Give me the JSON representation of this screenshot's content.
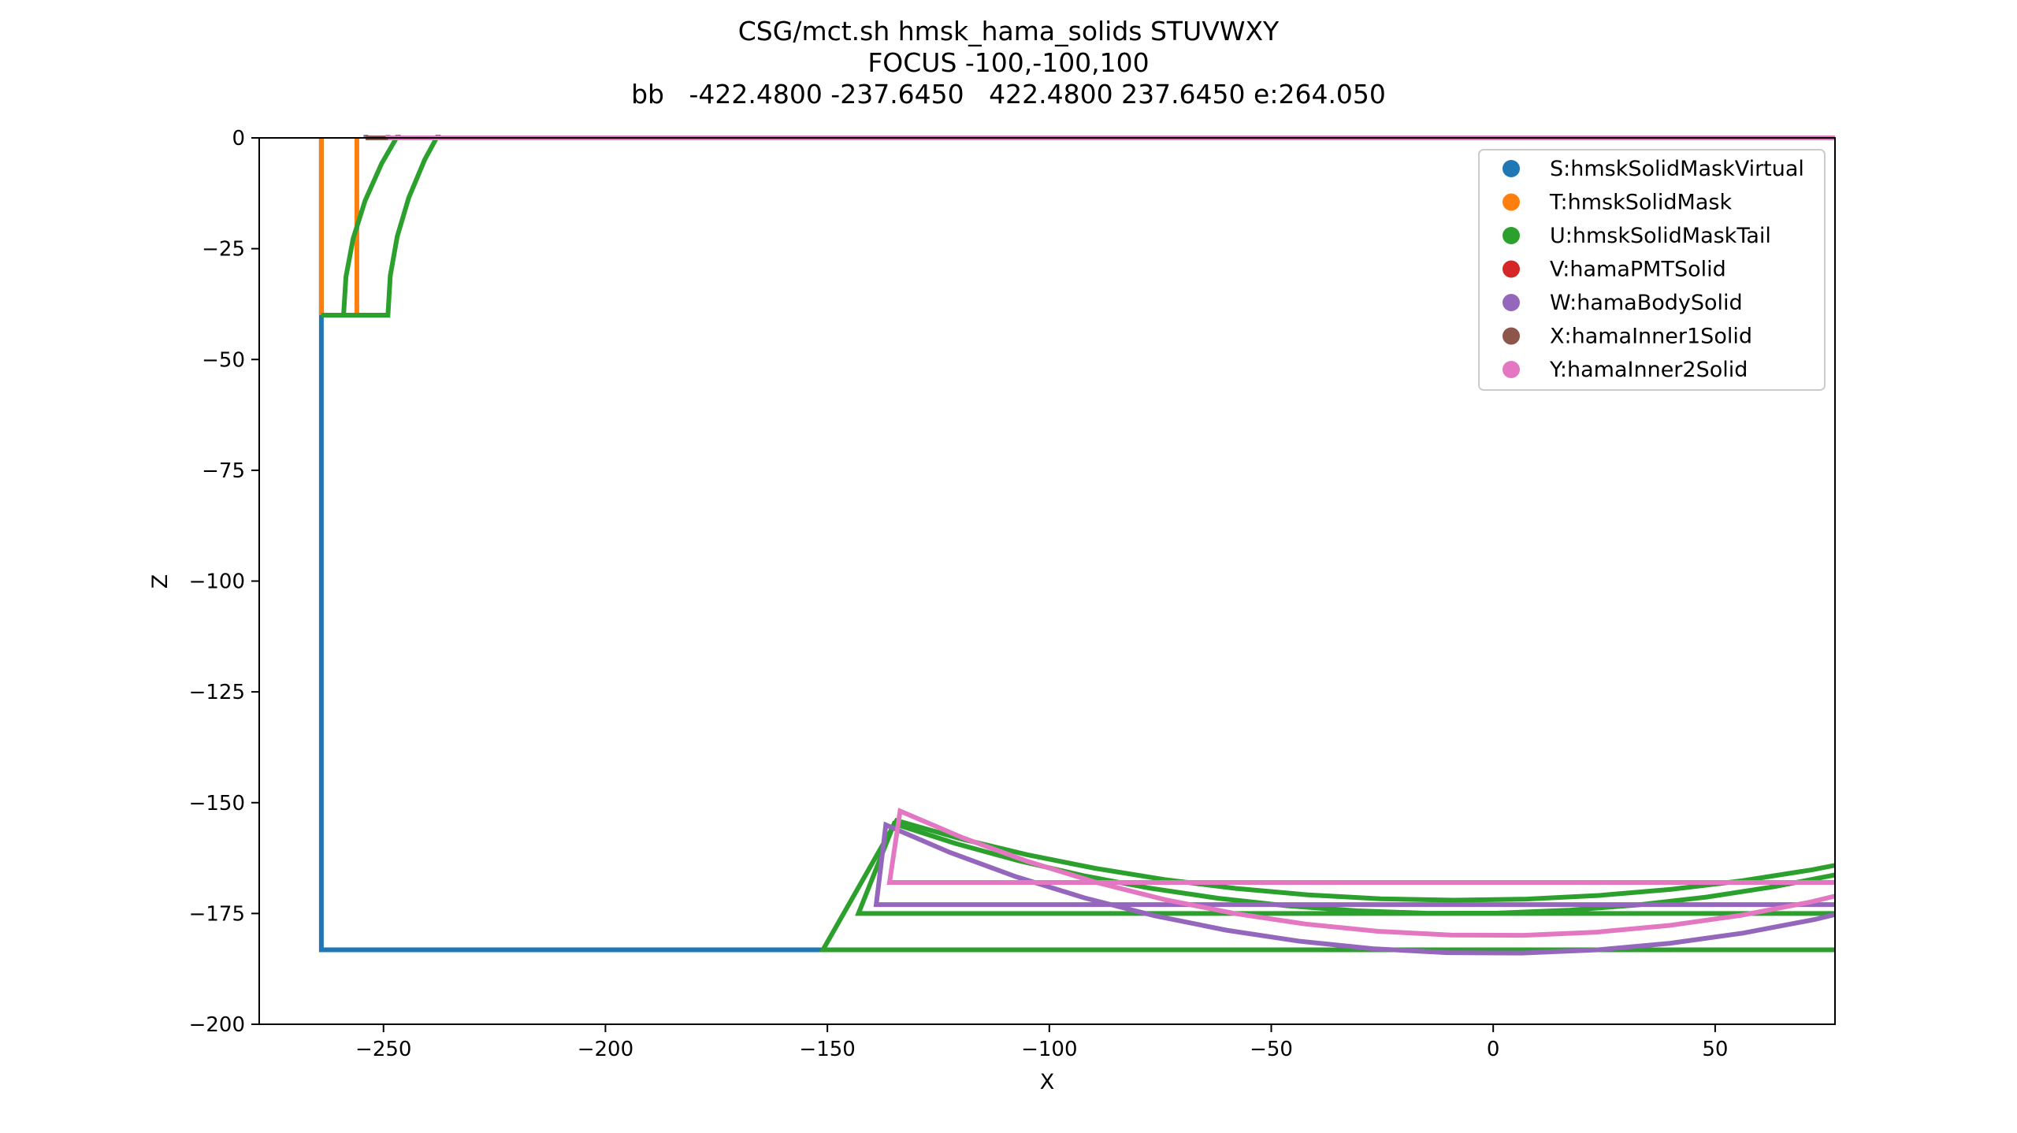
{
  "chart_data": {
    "type": "line",
    "title": [
      "CSG/mct.sh hmsk_hama_solids STUVWXY",
      "FOCUS -100,-100,100",
      "bb   -422.4800 -237.6450   422.4800 237.6450 e:264.050"
    ],
    "xlabel": "X",
    "ylabel": "Z",
    "xlim": [
      -278,
      77
    ],
    "ylim": [
      -200,
      0
    ],
    "xticks": [
      -250,
      -200,
      -150,
      -100,
      -50,
      0,
      50
    ],
    "yticks": [
      0,
      -25,
      -50,
      -75,
      -100,
      -125,
      -150,
      -175,
      -200
    ],
    "xtick_labels": [
      "−250",
      "−200",
      "−150",
      "−100",
      "−50",
      "0",
      "50"
    ],
    "ytick_labels": [
      "0",
      "−25",
      "−50",
      "−75",
      "−100",
      "−125",
      "−150",
      "−175",
      "−200"
    ],
    "grid": false,
    "legend_position": "top-right",
    "series": [
      {
        "name": "S:hmskSolidMaskVirtual",
        "color": "#1f77b4",
        "paths": [
          [
            [
              -264,
              0
            ],
            [
              -264,
              -183.2
            ],
            [
              77,
              -183.2
            ]
          ]
        ]
      },
      {
        "name": "T:hmskSolidMask",
        "color": "#ff7f0e",
        "paths": [
          [
            [
              -264,
              0
            ],
            [
              -264,
              -40
            ]
          ],
          [
            [
              -256,
              0
            ],
            [
              -256,
              -40
            ]
          ]
        ]
      },
      {
        "name": "U:hmskSolidMaskTail",
        "color": "#2ca02c",
        "paths": [
          [
            [
              -264,
              -40
            ],
            [
              -249,
              -40
            ],
            {
              "arc": true,
              "center": [
                -8,
                -40
              ],
              "radii": [
                241,
                135
              ],
              "from": [
                -249,
                -40
              ],
              "to": [
                -143,
                -162
              ]
            },
            [
              -143,
              -175
            ],
            [
              77,
              -175
            ]
          ],
          [
            [
              -264,
              -40
            ],
            [
              -259,
              -40
            ],
            {
              "arc": true,
              "center": [
                -8,
                -40
              ],
              "radii": [
                251,
                132
              ],
              "from": [
                -259,
                -40
              ],
              "to": [
                -151,
                -169
              ]
            },
            [
              -151,
              -183.2
            ],
            [
              77,
              -183.2
            ]
          ]
        ]
      },
      {
        "name": "V:hamaPMTSolid",
        "color": "#d62728",
        "paths": [
          [
            [
              -254,
              0
            ],
            [
              77,
              0
            ]
          ]
        ]
      },
      {
        "name": "W:hamaBodySolid",
        "color": "#9467bd",
        "paths": [
          [
            [
              -254,
              0
            ],
            {
              "arc": true,
              "center": [
                0,
                0
              ],
              "radii": [
                254,
                184
              ],
              "from": [
                -254,
                0
              ],
              "to": [
                -143,
                -162
              ]
            },
            [
              -139,
              -173
            ],
            [
              77,
              -173
            ]
          ]
        ]
      },
      {
        "name": "X:hamaInner1Solid",
        "color": "#8c564b",
        "paths": [
          [
            [
              -254,
              0
            ],
            [
              77,
              0
            ]
          ]
        ]
      },
      {
        "name": "Y:hamaInner2Solid",
        "color": "#e377c2",
        "paths": [
          [
            [
              -249,
              0
            ],
            [
              77,
              0
            ]
          ],
          [
            [
              -249,
              0
            ],
            {
              "arc": true,
              "center": [
                0,
                0
              ],
              "radii": [
                249,
                180
              ],
              "from": [
                -249,
                0
              ],
              "to": [
                -139,
                -158
              ]
            },
            [
              -136,
              -168
            ],
            [
              77,
              -168
            ]
          ]
        ]
      }
    ]
  }
}
